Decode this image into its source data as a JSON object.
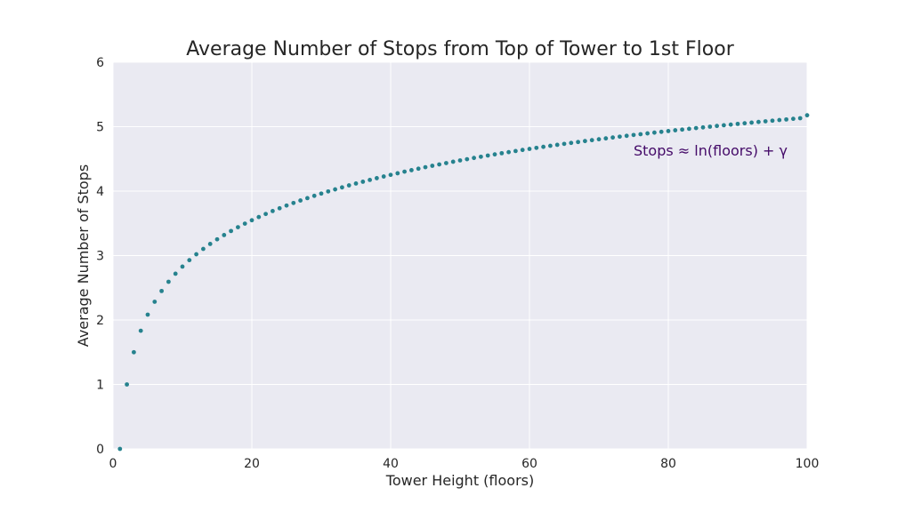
{
  "chart_data": {
    "type": "scatter",
    "title": "Average Number of Stops from Top of Tower to 1st Floor",
    "xlabel": "Tower Height (floors)",
    "ylabel": "Average Number of Stops",
    "xlim": [
      0,
      100
    ],
    "ylim": [
      0,
      6
    ],
    "xticks": [
      0,
      20,
      40,
      60,
      80,
      100
    ],
    "yticks": [
      0,
      1,
      2,
      3,
      4,
      5,
      6
    ],
    "x_tick_labels": [
      "0",
      "20",
      "40",
      "60",
      "80",
      "100"
    ],
    "y_tick_labels": [
      "0",
      "1",
      "2",
      "3",
      "4",
      "5",
      "6"
    ],
    "grid": true,
    "legend": "none",
    "annotation": {
      "text": "Stops ≈ ln(floors) + γ",
      "x": 75,
      "y": 4.55
    },
    "colors": {
      "background": "#eaeaf2",
      "grid": "#ffffff",
      "points": "#26828e",
      "annotation": "#440a68"
    },
    "series": [
      {
        "x": [
          1,
          2,
          3,
          4,
          5,
          6,
          7,
          8,
          9,
          10,
          11,
          12,
          13,
          14,
          15,
          16,
          17,
          18,
          19,
          20,
          21,
          22,
          23,
          24,
          25,
          26,
          27,
          28,
          29,
          30,
          31,
          32,
          33,
          34,
          35,
          36,
          37,
          38,
          39,
          40,
          41,
          42,
          43,
          44,
          45,
          46,
          47,
          48,
          49,
          50,
          51,
          52,
          53,
          54,
          55,
          56,
          57,
          58,
          59,
          60,
          61,
          62,
          63,
          64,
          65,
          66,
          67,
          68,
          69,
          70,
          71,
          72,
          73,
          74,
          75,
          76,
          77,
          78,
          79,
          80,
          81,
          82,
          83,
          84,
          85,
          86,
          87,
          88,
          89,
          90,
          91,
          92,
          93,
          94,
          95,
          96,
          97,
          98,
          99,
          100
        ],
        "y": [
          0,
          1,
          1.5,
          1.833,
          2.083,
          2.283,
          2.45,
          2.593,
          2.718,
          2.829,
          2.929,
          3.02,
          3.103,
          3.18,
          3.252,
          3.318,
          3.381,
          3.44,
          3.495,
          3.548,
          3.598,
          3.645,
          3.691,
          3.734,
          3.776,
          3.816,
          3.854,
          3.891,
          3.927,
          3.962,
          3.995,
          4.027,
          4.058,
          4.089,
          4.118,
          4.146,
          4.174,
          4.201,
          4.227,
          4.252,
          4.277,
          4.302,
          4.325,
          4.348,
          4.371,
          4.393,
          4.414,
          4.435,
          4.456,
          4.476,
          4.495,
          4.515,
          4.533,
          4.552,
          4.57,
          4.588,
          4.605,
          4.622,
          4.639,
          4.655,
          4.671,
          4.687,
          4.703,
          4.718,
          4.733,
          4.748,
          4.762,
          4.777,
          4.791,
          4.805,
          4.818,
          4.832,
          4.845,
          4.858,
          4.871,
          4.883,
          4.896,
          4.908,
          4.92,
          4.932,
          4.944,
          4.955,
          4.967,
          4.978,
          4.989,
          5,
          5.011,
          5.022,
          5.032,
          5.043,
          5.053,
          5.063,
          5.073,
          5.083,
          5.093,
          5.103,
          5.112,
          5.122,
          5.131,
          5.177
        ]
      }
    ]
  }
}
